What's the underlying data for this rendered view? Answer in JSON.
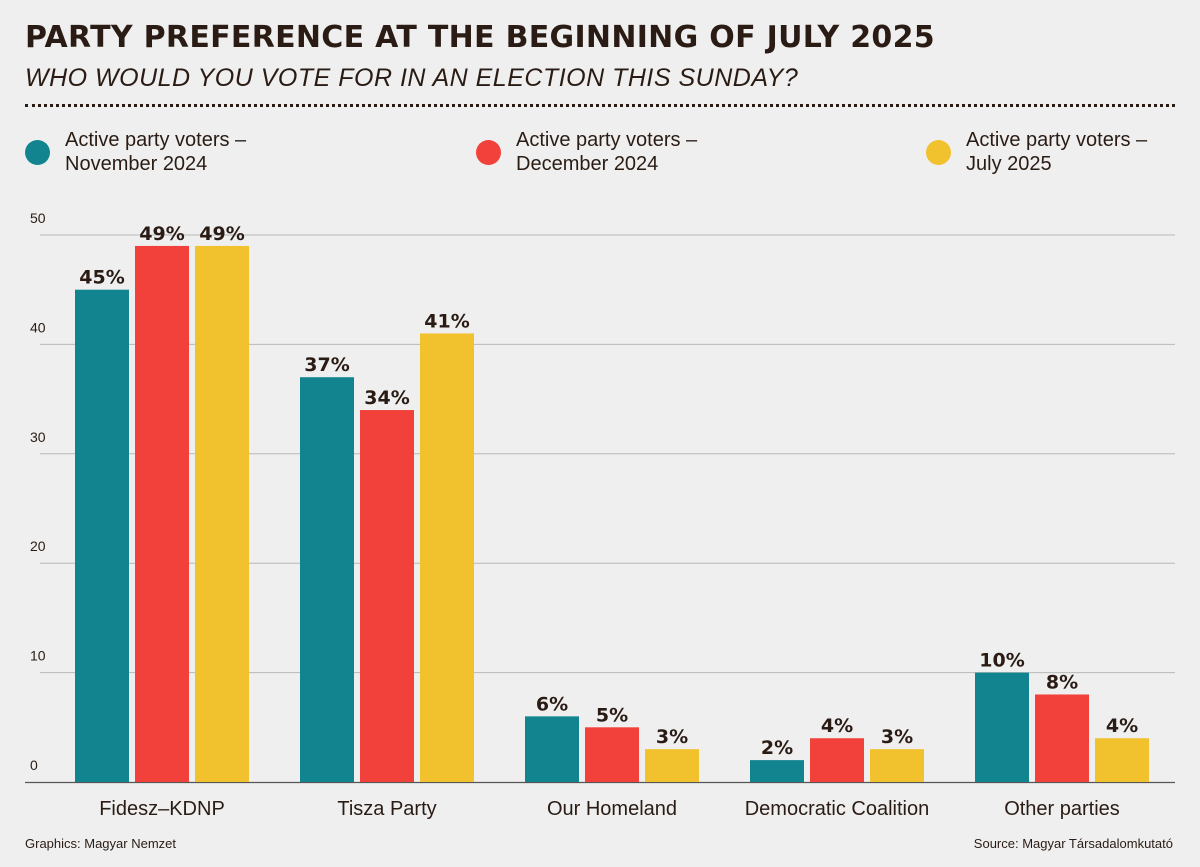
{
  "chart_data": {
    "type": "bar",
    "title": "PARTY PREFERENCE AT THE BEGINNING OF JULY 2025",
    "subtitle": "WHO WOULD YOU VOTE FOR IN AN ELECTION THIS SUNDAY?",
    "categories": [
      "Fidesz–KDNP",
      "Tisza Party",
      "Our Homeland",
      "Democratic Coalition",
      "Other parties"
    ],
    "series": [
      {
        "name_line1": "Active party voters –",
        "name_line2": "November 2024",
        "color": "#12848f",
        "values": [
          45,
          37,
          6,
          2,
          10
        ]
      },
      {
        "name_line1": "Active party voters –",
        "name_line2": "December 2024",
        "color": "#f2413a",
        "values": [
          49,
          34,
          5,
          4,
          8
        ]
      },
      {
        "name_line1": "Active party voters –",
        "name_line2": "July 2025",
        "color": "#f2c12e",
        "values": [
          49,
          41,
          3,
          3,
          4
        ]
      }
    ],
    "ylim": [
      0,
      50
    ],
    "yticks": [
      "0",
      "10",
      "20",
      "30",
      "40",
      "50"
    ],
    "value_suffix": "%",
    "grid": true,
    "legend": "top"
  },
  "footer": {
    "credit": "Graphics: Magyar Nemzet",
    "source": "Source: Magyar Társadalomkutató"
  }
}
